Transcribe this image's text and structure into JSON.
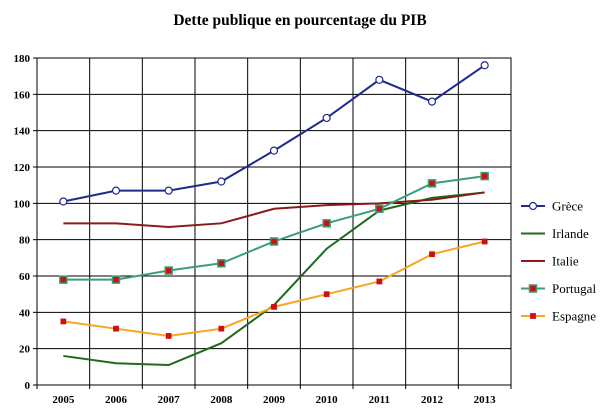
{
  "chart_data": {
    "type": "line",
    "title": "Dette publique en pourcentage du PIB",
    "xlabel": "",
    "ylabel": "",
    "x": [
      "2005",
      "2006",
      "2007",
      "2008",
      "2009",
      "2010",
      "2011",
      "2012",
      "2013"
    ],
    "ylim": [
      0,
      180
    ],
    "yticks": [
      0,
      20,
      40,
      60,
      80,
      100,
      120,
      140,
      160,
      180
    ],
    "grid": true,
    "legend_position": "right",
    "series": [
      {
        "name": "Grèce",
        "color": "#1f2a8c",
        "marker": "circle-open",
        "values": [
          101,
          107,
          107,
          112,
          129,
          147,
          168,
          156,
          176
        ]
      },
      {
        "name": "Irlande",
        "color": "#1e6b1e",
        "marker": "none",
        "values": [
          16,
          12,
          11,
          23,
          44,
          75,
          96,
          103,
          106
        ]
      },
      {
        "name": "Italie",
        "color": "#8b1a1a",
        "marker": "none",
        "values": [
          89,
          89,
          87,
          89,
          97,
          99,
          100,
          102,
          106
        ]
      },
      {
        "name": "Portugal",
        "color": "#3a9e7a",
        "marker": "square-red",
        "values": [
          58,
          58,
          63,
          67,
          79,
          89,
          97,
          111,
          115
        ]
      },
      {
        "name": "Espagne",
        "color": "#f5a623",
        "marker": "square-small-red",
        "values": [
          35,
          31,
          27,
          31,
          43,
          50,
          57,
          72,
          79
        ]
      }
    ]
  }
}
